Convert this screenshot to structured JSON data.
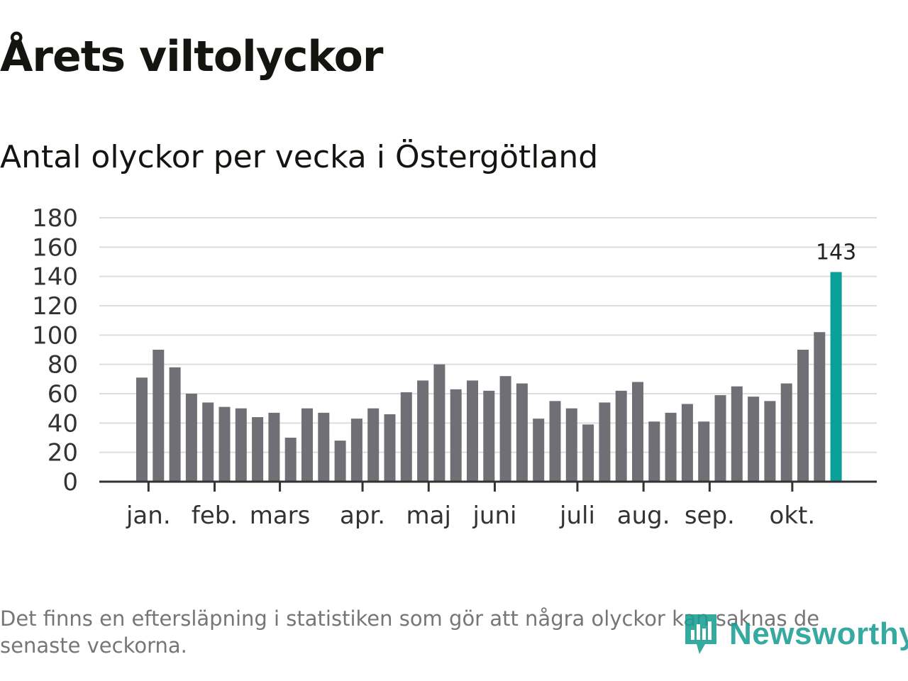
{
  "title": "Årets viltolyckor",
  "subtitle": "Antal olyckor per vecka i Östergötland",
  "note": "Det finns en eftersläpning i statistiken som gör att några olyckor kan saknas de senaste veckorna.",
  "logo": {
    "text": "Newsworthy",
    "icon": "bar-chart-logo-icon"
  },
  "colors": {
    "bar": "#706f75",
    "highlight": "#0aa09a",
    "grid": "#dddddd",
    "axis": "#333333",
    "text": "#333333",
    "brand": "#1b9e93"
  },
  "chart_data": {
    "type": "bar",
    "title": "Antal olyckor per vecka i Östergötland",
    "xlabel": "",
    "ylabel": "",
    "ylim": [
      0,
      180
    ],
    "yticks": [
      "0",
      "20",
      "40",
      "60",
      "80",
      "100",
      "120",
      "140",
      "160",
      "180"
    ],
    "values": [
      71,
      90,
      78,
      60,
      54,
      51,
      50,
      44,
      47,
      30,
      50,
      47,
      28,
      43,
      50,
      46,
      61,
      69,
      80,
      63,
      69,
      62,
      72,
      67,
      43,
      55,
      50,
      39,
      54,
      62,
      68,
      41,
      47,
      53,
      41,
      59,
      65,
      58,
      55,
      67,
      90,
      102,
      143
    ],
    "highlight_index": 42,
    "highlight_label": "143",
    "month_labels": [
      {
        "label": "jan.",
        "week": 0.4
      },
      {
        "label": "feb.",
        "week": 4.4
      },
      {
        "label": "mars",
        "week": 8.35
      },
      {
        "label": "apr.",
        "week": 13.35
      },
      {
        "label": "maj",
        "week": 17.35
      },
      {
        "label": "juni",
        "week": 21.35
      },
      {
        "label": "juli",
        "week": 26.35
      },
      {
        "label": "aug.",
        "week": 30.35
      },
      {
        "label": "sep.",
        "week": 34.35
      },
      {
        "label": "okt.",
        "week": 39.35
      }
    ]
  }
}
